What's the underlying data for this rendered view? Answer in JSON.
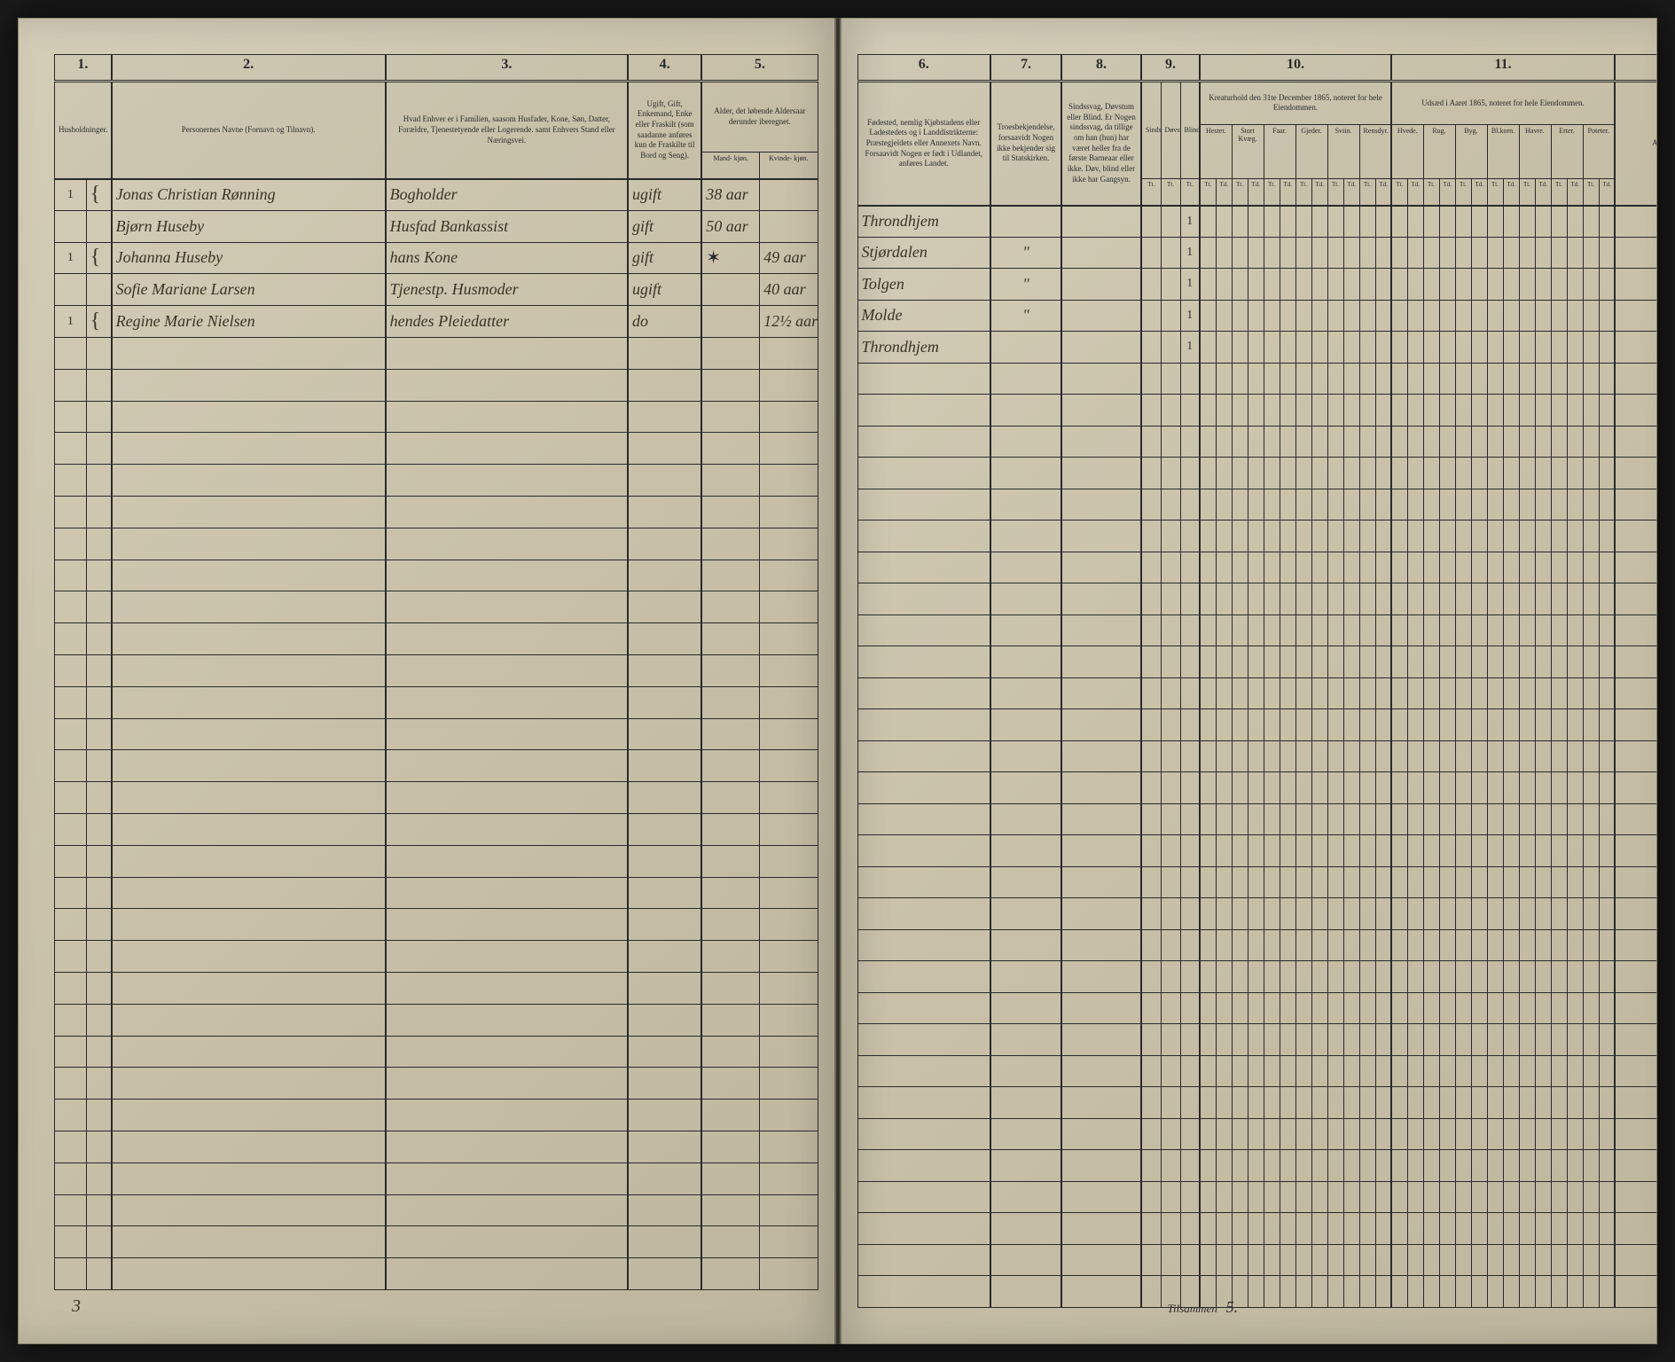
{
  "page_left_number": "3",
  "page_right_tilsammen": "Tilsammen",
  "page_right_sum": "5.",
  "left_columns": {
    "c1": {
      "num": "1.",
      "desc": "Husholdninger."
    },
    "c2": {
      "num": "2.",
      "desc": "Personernes Navne (Fornavn og Tilnavn)."
    },
    "c3": {
      "num": "3.",
      "desc": "Hvad Enhver er i Familien, saasom Husfader, Kone, Søn, Datter, Forældre, Tjenestetyende eller Logerende.\nsamt\nEnhvers Stand eller Næringsvei."
    },
    "c4": {
      "num": "4.",
      "desc": "Ugift, Gift, Enkemand, Enke eller Fraskilt (som saadanne anføres kun de Fraskilte til Bord og Seng)."
    },
    "c5": {
      "num": "5.",
      "desc": "Alder, det løbende Aldersaar derunder iberegnet.",
      "sub1": "Mand-\nkjøn.",
      "sub2": "Kvinde-\nkjøn."
    }
  },
  "right_columns": {
    "c6": {
      "num": "6.",
      "desc": "Fødested,\nnemlig Kjøbstadens eller Ladestedets og i Landdistrikterne: Præstegjeldets eller Annexets Navn. Forsaavidt Nogen er født i Udlandet, anføres Landet."
    },
    "c7": {
      "num": "7.",
      "desc": "Troesbekjendelse, forsaavidt Nogen ikke bekjender sig til Statskirken."
    },
    "c8": {
      "num": "8.",
      "desc": "Sindssvag, Døvstum eller Blind. Er Nogen sindssvag, da tillige om han (hun) har været heller fra de første Barneaar eller ikke. Døv, blind eller ikke har Gangsyn."
    },
    "c9": {
      "num": "9.",
      "desc": "",
      "sub1": "Sindssvag",
      "sub2": "Døvstum",
      "sub3": "Blind"
    },
    "c10": {
      "num": "10.",
      "desc": "Kreaturhold den 31te December 1865, noteret for hele Eiendommen.",
      "subs": [
        "Hester.",
        "Stort Kvæg.",
        "Faar.",
        "Gjeder.",
        "Sviin.",
        "Rensdyr."
      ]
    },
    "c11": {
      "num": "11.",
      "desc": "Udsæd i Aaret 1865, noteret for hele Eiendommen.",
      "subs": [
        "Hvede.",
        "Rug.",
        "Byg.",
        "Bl.korn.",
        "Havre.",
        "Erter.",
        "Poteter."
      ]
    },
    "c12": {
      "num": "",
      "desc": "Anmærkninger."
    }
  },
  "tt_header": "Tt.",
  "entries": [
    {
      "household": "1",
      "brace": "{",
      "name": "Jonas Christian Rønning",
      "role": "Bogholder",
      "status": "ugift",
      "age_m": "38 aar",
      "age_f": "",
      "birthplace": "Throndhjem",
      "faith": "",
      "cond": "",
      "c9": "1"
    },
    {
      "household": "",
      "brace": "",
      "name": "Bjørn Huseby",
      "role": "Husfad Bankassist",
      "status": "gift",
      "age_m": "50 aar",
      "age_f": "",
      "birthplace": "Stjørdalen",
      "faith": "ʺ",
      "cond": "",
      "c9": "1"
    },
    {
      "household": "1",
      "brace": "{",
      "name": "Johanna Huseby",
      "role": "hans Kone",
      "status": "gift",
      "age_m": "✶",
      "age_f": "49 aar",
      "birthplace": "Tolgen",
      "faith": "ʺ",
      "cond": "",
      "c9": "1"
    },
    {
      "household": "",
      "brace": "",
      "name": "Sofie Mariane Larsen",
      "role": "Tjenestp. Husmoder",
      "status": "ugift",
      "age_m": "",
      "age_f": "40 aar",
      "birthplace": "Molde",
      "faith": "ʺ",
      "cond": "",
      "c9": "1"
    },
    {
      "household": "1",
      "brace": "{",
      "name": "Regine Marie Nielsen",
      "role": "hendes Pleiedatter",
      "status": "do",
      "age_m": "",
      "age_f": "12½ aar",
      "birthplace": "Throndhjem",
      "faith": "",
      "cond": "",
      "c9": "1"
    }
  ],
  "colors": {
    "paper": "#c8c0a8",
    "ink": "#2a2a2a",
    "handwriting": "#3a3226"
  },
  "empty_row_count": 30
}
